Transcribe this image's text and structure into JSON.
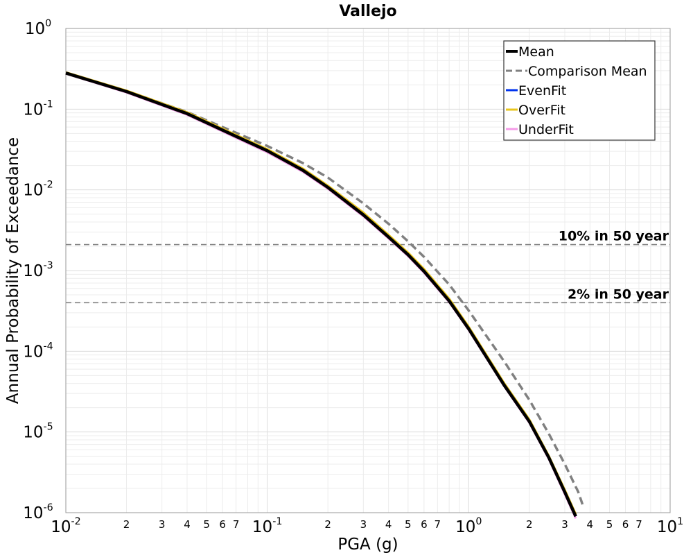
{
  "chart_data": {
    "type": "line",
    "title": "Vallejo",
    "xlabel": "PGA (g)",
    "ylabel": "Annual Probability of Exceedance",
    "xscale": "log",
    "yscale": "log",
    "xlim": [
      0.01,
      10
    ],
    "ylim": [
      1e-06,
      1
    ],
    "grid": true,
    "legend_position": "top-right",
    "x_major_ticks": [
      {
        "base": "10",
        "exp": "-2"
      },
      {
        "base": "10",
        "exp": "-1"
      },
      {
        "base": "10",
        "exp": "0"
      },
      {
        "base": "10",
        "exp": "1"
      }
    ],
    "x_minor_tick_labels": [
      "2",
      "3",
      "4",
      "5",
      "6",
      "7"
    ],
    "y_major_ticks": [
      {
        "base": "10",
        "exp": "0"
      },
      {
        "base": "10",
        "exp": "-1"
      },
      {
        "base": "10",
        "exp": "-2"
      },
      {
        "base": "10",
        "exp": "-3"
      },
      {
        "base": "10",
        "exp": "-4"
      },
      {
        "base": "10",
        "exp": "-5"
      },
      {
        "base": "10",
        "exp": "-6"
      }
    ],
    "series": [
      {
        "name": "Mean",
        "color": "#000000",
        "style": "solid",
        "x": [
          0.01,
          0.02,
          0.04,
          0.07,
          0.1,
          0.15,
          0.2,
          0.3,
          0.4,
          0.5,
          0.6,
          0.8,
          1.0,
          1.5,
          2.0,
          2.5,
          3.0,
          3.4
        ],
        "y": [
          0.28,
          0.165,
          0.088,
          0.046,
          0.0305,
          0.0175,
          0.0107,
          0.0049,
          0.0026,
          0.00157,
          0.00098,
          0.00042,
          0.00019,
          3.8e-05,
          1.35e-05,
          4.8e-06,
          1.8e-06,
          9e-07
        ]
      },
      {
        "name": "Comparison Mean",
        "color": "#808080",
        "style": "dashed",
        "x": [
          0.01,
          0.02,
          0.04,
          0.07,
          0.1,
          0.15,
          0.2,
          0.3,
          0.4,
          0.5,
          0.6,
          0.8,
          1.0,
          1.5,
          2.0,
          2.5,
          3.0,
          3.5,
          3.7
        ],
        "y": [
          0.28,
          0.168,
          0.092,
          0.051,
          0.035,
          0.0215,
          0.0142,
          0.0068,
          0.0038,
          0.0023,
          0.00148,
          0.00067,
          0.00032,
          7.5e-05,
          2.5e-05,
          9.5e-06,
          4e-06,
          1.8e-06,
          1.2e-06
        ]
      },
      {
        "name": "EvenFit",
        "color": "#0033ee",
        "style": "solid",
        "x": [
          0.01,
          0.02,
          0.04,
          0.07,
          0.1,
          0.15,
          0.2,
          0.3,
          0.4,
          0.5,
          0.6,
          0.8,
          1.0,
          1.5,
          2.0,
          2.5,
          3.0,
          3.4
        ],
        "y": [
          0.28,
          0.165,
          0.088,
          0.046,
          0.0305,
          0.0175,
          0.0107,
          0.0049,
          0.0026,
          0.00157,
          0.00098,
          0.00042,
          0.00019,
          3.8e-05,
          1.35e-05,
          4.8e-06,
          1.8e-06,
          9e-07
        ]
      },
      {
        "name": "OverFit",
        "color": "#e8c51c",
        "style": "solid",
        "x": [
          0.01,
          0.02,
          0.04,
          0.07,
          0.1,
          0.15,
          0.2,
          0.3,
          0.4,
          0.5,
          0.6,
          0.8,
          1.0,
          1.5,
          2.0,
          2.5,
          3.0,
          3.4
        ],
        "y": [
          0.285,
          0.169,
          0.091,
          0.0478,
          0.0318,
          0.0183,
          0.0112,
          0.0052,
          0.00275,
          0.00166,
          0.00104,
          0.000445,
          0.0002,
          4e-05,
          1.42e-05,
          5e-06,
          1.9e-06,
          9.5e-07
        ]
      },
      {
        "name": "UnderFit",
        "color": "#f59be8",
        "style": "solid",
        "x": [
          0.01,
          0.02,
          0.04,
          0.07,
          0.1,
          0.15,
          0.2,
          0.3,
          0.4,
          0.5,
          0.6,
          0.8,
          1.0,
          1.5,
          2.0,
          2.5,
          3.0,
          3.4
        ],
        "y": [
          0.275,
          0.161,
          0.085,
          0.0442,
          0.0292,
          0.0168,
          0.0103,
          0.0047,
          0.0025,
          0.00151,
          0.00094,
          0.000405,
          0.000183,
          3.68e-05,
          1.3e-05,
          4.6e-06,
          1.7e-06,
          8.5e-07
        ]
      }
    ],
    "reference_lines": [
      {
        "label": "10% in 50 year",
        "y": 0.0021,
        "color": "#808080"
      },
      {
        "label": "2% in 50 year",
        "y": 0.0004,
        "color": "#808080"
      }
    ]
  }
}
